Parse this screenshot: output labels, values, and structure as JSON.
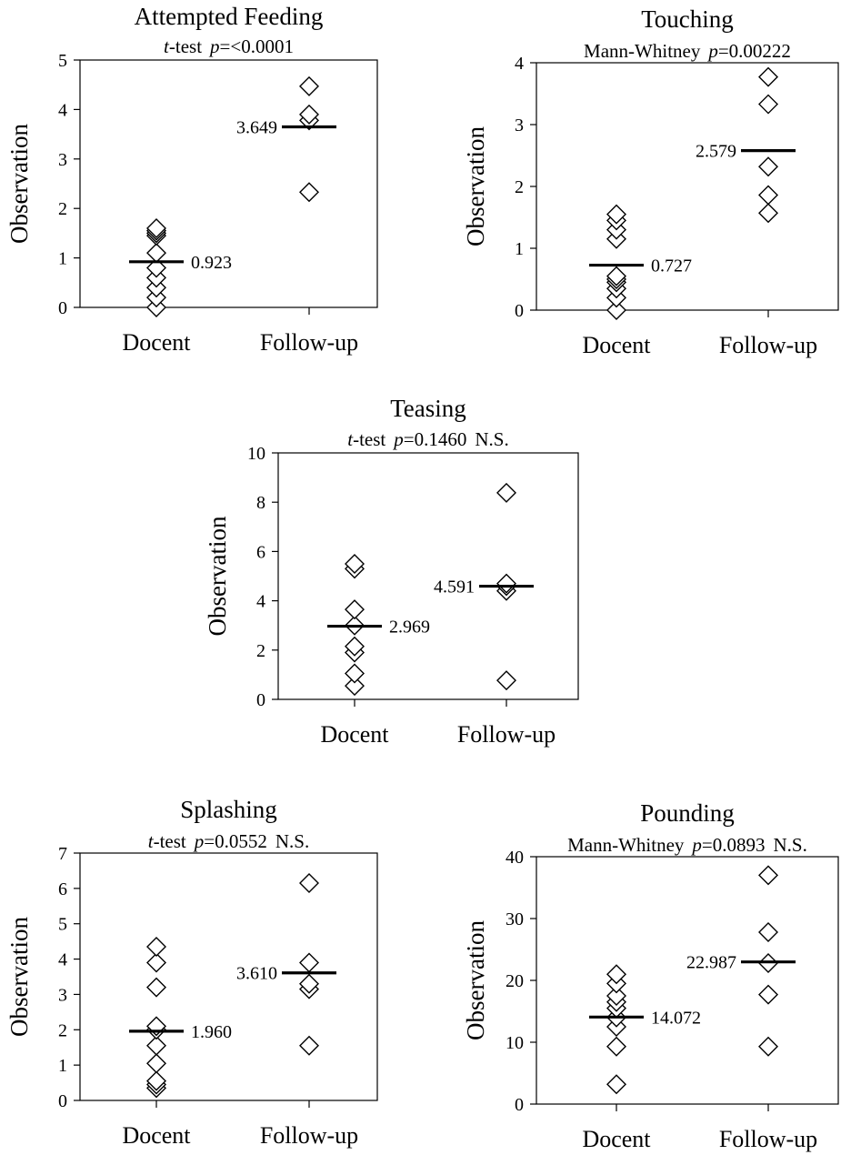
{
  "chart_data": [
    {
      "type": "scatter",
      "title": "Attempted Feeding",
      "test": "t-test",
      "p_label": "p",
      "p_value": "=<0.0001",
      "ns": "",
      "ylabel": "Observation",
      "ylim": [
        0,
        5
      ],
      "yticks": [
        "0",
        "1",
        "2",
        "3",
        "4",
        "5"
      ],
      "categories": [
        "Docent",
        "Follow-up"
      ],
      "groups": [
        {
          "name": "Docent",
          "values": [
            0.0,
            0.2,
            0.4,
            0.6,
            0.8,
            1.1,
            1.45,
            1.5,
            1.55,
            1.6
          ],
          "mean": 0.923,
          "mean_label": "0.923"
        },
        {
          "name": "Follow-up",
          "values": [
            2.33,
            3.78,
            3.9,
            4.47
          ],
          "mean": 3.649,
          "mean_label": "3.649"
        }
      ]
    },
    {
      "type": "scatter",
      "title": "Touching",
      "test": "Mann-Whitney",
      "p_label": "p",
      "p_value": "=0.00222",
      "ns": "",
      "ylabel": "Observation",
      "ylim": [
        0,
        4
      ],
      "yticks": [
        "0",
        "1",
        "2",
        "3",
        "4"
      ],
      "categories": [
        "Docent",
        "Follow-up"
      ],
      "groups": [
        {
          "name": "Docent",
          "values": [
            0.0,
            0.2,
            0.35,
            0.45,
            0.5,
            0.55,
            1.15,
            1.3,
            1.45,
            1.55
          ],
          "mean": 0.727,
          "mean_label": "0.727"
        },
        {
          "name": "Follow-up",
          "values": [
            1.57,
            1.86,
            2.32,
            3.33,
            3.77
          ],
          "mean": 2.579,
          "mean_label": "2.579"
        }
      ]
    },
    {
      "type": "scatter",
      "title": "Teasing",
      "test": "t-test",
      "p_label": "p",
      "p_value": "=0.1460",
      "ns": "N.S.",
      "ylabel": "Observation",
      "ylim": [
        0,
        10
      ],
      "yticks": [
        "0",
        "2",
        "4",
        "6",
        "8",
        "10"
      ],
      "categories": [
        "Docent",
        "Follow-up"
      ],
      "groups": [
        {
          "name": "Docent",
          "values": [
            0.55,
            1.05,
            1.9,
            2.15,
            3.0,
            3.65,
            5.3,
            5.5
          ],
          "mean": 2.969,
          "mean_label": "2.969"
        },
        {
          "name": "Follow-up",
          "values": [
            0.77,
            4.4,
            4.6,
            4.7,
            8.38
          ],
          "mean": 4.591,
          "mean_label": "4.591"
        }
      ]
    },
    {
      "type": "scatter",
      "title": "Splashing",
      "test": "t-test",
      "p_label": "p",
      "p_value": "=0.0552",
      "ns": "N.S.",
      "ylabel": "Observation",
      "ylim": [
        0,
        7
      ],
      "yticks": [
        "0",
        "1",
        "2",
        "3",
        "4",
        "5",
        "6",
        "7"
      ],
      "categories": [
        "Docent",
        "Follow-up"
      ],
      "groups": [
        {
          "name": "Docent",
          "values": [
            0.35,
            0.45,
            0.55,
            1.05,
            1.55,
            2.0,
            2.1,
            3.2,
            3.9,
            4.35
          ],
          "mean": 1.96,
          "mean_label": "1.960"
        },
        {
          "name": "Follow-up",
          "values": [
            1.55,
            3.15,
            3.3,
            3.9,
            6.15
          ],
          "mean": 3.61,
          "mean_label": "3.610"
        }
      ]
    },
    {
      "type": "scatter",
      "title": "Pounding",
      "test": "Mann-Whitney",
      "p_label": "p",
      "p_value": "=0.0893",
      "ns": "N.S.",
      "ylabel": "Observation",
      "ylim": [
        0,
        40
      ],
      "yticks": [
        "0",
        "10",
        "20",
        "30",
        "40"
      ],
      "categories": [
        "Docent",
        "Follow-up"
      ],
      "groups": [
        {
          "name": "Docent",
          "values": [
            3.2,
            9.3,
            12.5,
            14.0,
            15.5,
            16.5,
            17.5,
            19.5,
            21.0
          ],
          "mean": 14.072,
          "mean_label": "14.072"
        },
        {
          "name": "Follow-up",
          "values": [
            9.3,
            17.7,
            22.8,
            27.8,
            37.0
          ],
          "mean": 22.987,
          "mean_label": "22.987"
        }
      ]
    }
  ]
}
